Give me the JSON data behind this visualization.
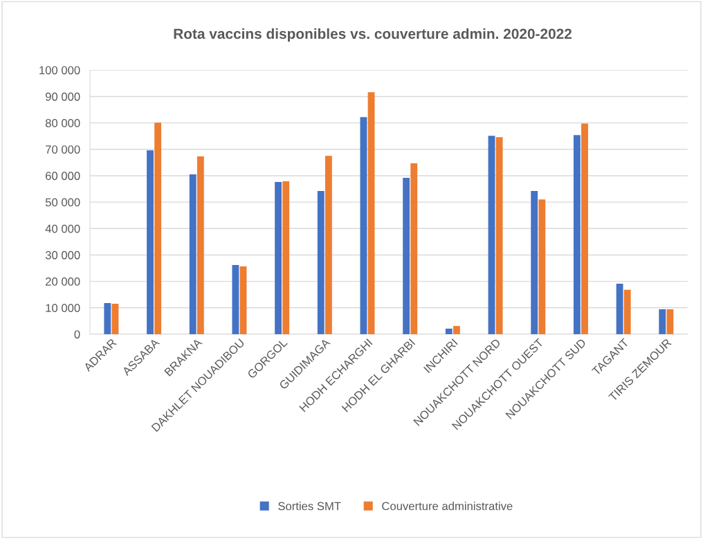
{
  "chart_data": {
    "type": "bar",
    "title": "Rota vaccins disponibles vs. couverture admin. 2020-2022",
    "categories": [
      "ADRAR",
      "ASSABA",
      "BRAKNA",
      "DAKHLET NOUADIBOU",
      "GORGOL",
      "GUIDIMAGA",
      "HODH ECHARGHI",
      "HODH EL GHARBI",
      "INCHIRI",
      "NOUAKCHOTT NORD",
      "NOUAKCHOTT OUEST",
      "NOUAKCHOTT SUD",
      "TAGANT",
      "TIRIS ZEMOUR"
    ],
    "series": [
      {
        "name": "Sorties SMT",
        "color": "#4472c4",
        "values": [
          11800,
          69600,
          60500,
          26200,
          57600,
          54200,
          82200,
          59200,
          2100,
          75100,
          54200,
          75400,
          19100,
          9400
        ]
      },
      {
        "name": "Couverture administrative",
        "color": "#ed7d31",
        "values": [
          11500,
          80100,
          67300,
          25700,
          57900,
          67500,
          91600,
          64700,
          3100,
          74600,
          51000,
          79800,
          16800,
          9400
        ]
      }
    ],
    "ylim": [
      0,
      100000
    ],
    "yticks": [
      0,
      {
        "value": 10000,
        "label": "10 000"
      },
      {
        "value": 20000,
        "label": "20 000"
      },
      {
        "value": 30000,
        "label": "30 000"
      },
      {
        "value": 40000,
        "label": "40 000"
      },
      {
        "value": 50000,
        "label": "50 000"
      },
      {
        "value": 60000,
        "label": "60 000"
      },
      {
        "value": 70000,
        "label": "70 000"
      },
      {
        "value": 80000,
        "label": "80 000"
      },
      {
        "value": 90000,
        "label": "90 000"
      },
      {
        "value": 100000,
        "label": "100 000"
      }
    ],
    "grid": "y",
    "legend": "bottom"
  }
}
